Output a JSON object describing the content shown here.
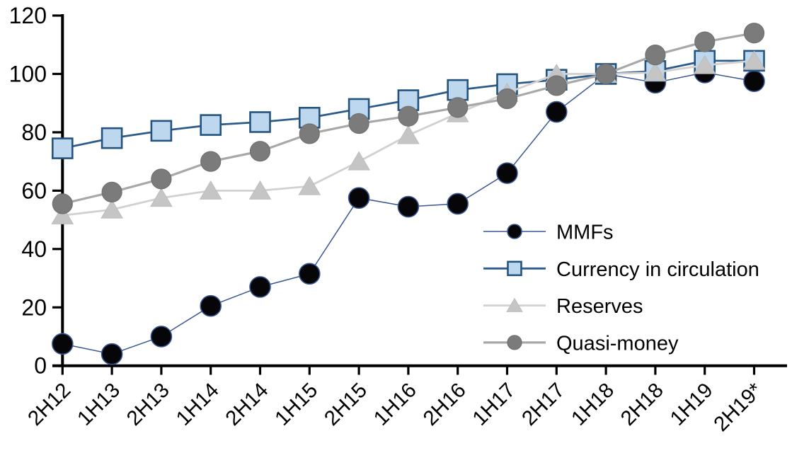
{
  "chart_data": {
    "type": "line",
    "title": "",
    "xlabel": "",
    "ylabel": "",
    "grid": false,
    "categories": [
      "2H12",
      "1H13",
      "2H13",
      "1H14",
      "2H14",
      "1H15",
      "2H15",
      "1H16",
      "2H16",
      "1H17",
      "2H17",
      "1H18",
      "2H18",
      "1H19",
      "2H19*"
    ],
    "y_axis": {
      "min": 0,
      "max": 120,
      "step": 20,
      "tick_labels": [
        "0",
        "20",
        "40",
        "60",
        "80",
        "100",
        "120"
      ]
    },
    "axis_color": "#000000",
    "series": [
      {
        "name": "MMFs",
        "marker": "circle",
        "line_color": "#3A5795",
        "line_width": 1.5,
        "marker_fill": "#060608",
        "marker_stroke": "#3A5795",
        "marker_stroke_width": 1.6,
        "marker_size": 14.5,
        "values": [
          7.5,
          4,
          10,
          20.5,
          27,
          31.5,
          57.5,
          54.5,
          55.5,
          66,
          87,
          100,
          97,
          100.5,
          97.5
        ]
      },
      {
        "name": "Currency in circulation",
        "marker": "square",
        "line_color": "#2E5C8A",
        "line_width": 2.8,
        "marker_fill": "#BDD7EE",
        "marker_stroke": "#24547E",
        "marker_stroke_width": 2.6,
        "marker_size": 14,
        "values": [
          74.5,
          78,
          80.5,
          82.5,
          83.5,
          85,
          88,
          91,
          94.5,
          96.5,
          98,
          100,
          101,
          104.5,
          104.5
        ]
      },
      {
        "name": "Reserves",
        "marker": "triangle",
        "line_color": "#D2D0D0",
        "line_width": 2.8,
        "marker_fill": "#C5C5C5",
        "marker_stroke": "#BDBDBD",
        "marker_stroke_width": 1,
        "marker_size": 15,
        "values": [
          51.5,
          53.5,
          57.5,
          60,
          60,
          61.5,
          70,
          79,
          86.5,
          93.5,
          100,
          100,
          100.5,
          103,
          104.5
        ]
      },
      {
        "name": "Quasi-money",
        "marker": "circle",
        "line_color": "#A8A8A8",
        "line_width": 3.2,
        "marker_fill": "#7B7B7B",
        "marker_stroke": "#707070",
        "marker_stroke_width": 1.2,
        "marker_size": 14,
        "values": [
          55.5,
          59.5,
          64,
          70,
          73.5,
          79.5,
          83,
          85.5,
          88.5,
          91.5,
          96,
          100,
          106.5,
          111,
          114
        ]
      }
    ],
    "legend": {
      "position": "inside-right",
      "items": [
        "MMFs",
        "Currency in circulation",
        "Reserves",
        "Quasi-money"
      ]
    }
  }
}
